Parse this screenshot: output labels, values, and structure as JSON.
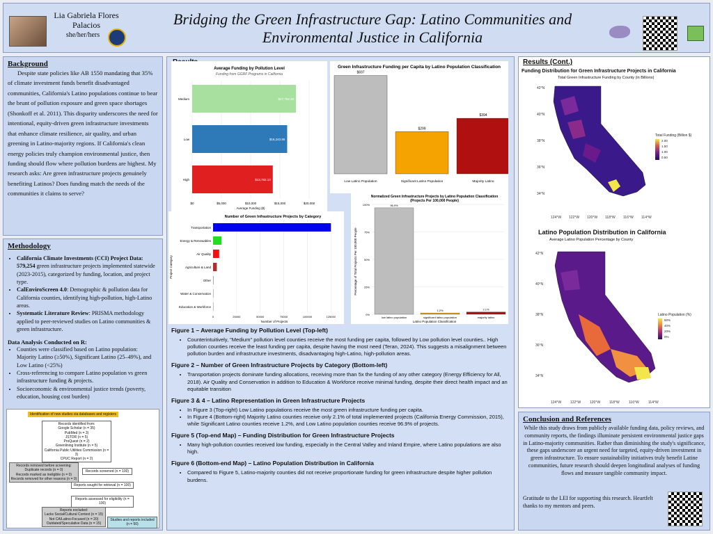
{
  "header": {
    "author": "Lia Gabriela Flores Palacios",
    "pronouns": "she/her/hers",
    "title": "Bridging the Green Infrastructure Gap: Latino Communities and Environmental Justice in California"
  },
  "background": {
    "heading": "Background",
    "body": "Despite state policies like AB 1550 mandating that 35% of climate investment funds benefit disadvantaged communities, California's Latino populations continue to bear the brunt of pollution exposure and green space shortages (Shonkoff et al. 2011). This disparity underscores the need for intentional, equity-driven green infrastructure investments that enhance climate resilience, air quality, and urban greening in Latino-majority regions. If California's clean energy policies truly champion environmental justice, then funding should flow where pollution burdens are highest. My research asks: Are green infrastructure projects genuinely benefiting Latinos? Does funding match the needs of the communities it claims to serve?"
  },
  "methodology": {
    "heading": "Methodology",
    "items": [
      {
        "bold": "California Climate Investments (CCI) Project Data: 579,254",
        "rest": " green infrastructure projects implemented statewide (2023-2015), categorized by funding, location, and project type."
      },
      {
        "bold": "CalEnviroScreen 4.0",
        "rest": ": Demographic & pollution data for California counties, identifying high-pollution, high-Latino areas."
      },
      {
        "bold": "Systematic Literature Review",
        "rest": ": PRISMA methodology applied to peer-reviewed studies on Latino communities & green infrastructure."
      }
    ],
    "analysis_heading": "Data Analysis Conducted on R:",
    "analysis_items": [
      "Counties were classified based on Latino population: Majority Latino (≥50%), Significant Latino (25–49%), and Low Latino (<25%)",
      "Cross-referencing to compare Latino population vs green infrastructure funding & projects.",
      "Socioeconomic & environmental justice trends (poverty, education, housing cost burden)"
    ]
  },
  "prisma": {
    "identification": "Identification of new studies via databases and registers",
    "records_identified": [
      "Records identified from:",
      "Google Scholar (n = 35)",
      "PubMed (n = 3)",
      "JSTOR (n = 5)",
      "ProQuest (n = 2)",
      "Greenlining Institute (n = 5)",
      "California Public Utilities Commission (n = 3)",
      "CPUC Report (n = 2)"
    ],
    "removed": [
      "Records removed before screening:",
      "Duplicate records (n = 0)",
      "Records marked as ineligible (n = 0)",
      "Records removed for other reasons (n = 0)"
    ],
    "screened": "Records screened (n = 100)",
    "sought": "Reports sought for retrieval (n = 100)",
    "assessed": "Reports assessed for eligibility (n = 100)",
    "excluded": [
      "Reports excluded:",
      "Lacks Social/Cultural Context (n = 15)",
      "Not CA/Latino-Focused (n = 20)",
      "Outdated/Speculative Data (n = 15)"
    ],
    "included": "Studies and reports included (n = 50)"
  },
  "results": {
    "heading": "Results",
    "figures": [
      {
        "title": "Figure 1 – Average Funding by Pollution Level (Top-left)",
        "bullets": [
          "Counterintuitively, \"Medium\" pollution level counties receive the most funding per capita, followed by Low pollution level counties.. High pollution counties receive the least funding per capita, despite having the most need (Teran, 2024). This suggests a misalignment between pollution burden and infrastructure investments, disadvantaging high-Latino, high-pollution areas."
        ]
      },
      {
        "title": "Figure 2 – Number of Green Infrastructure Projects by Category (Bottom-left)",
        "bullets": [
          "Transportation projects dominate funding allocations, receiving more than 5x the funding of any other category (Energy Efficiency for All, 2018). Air Quality and Conservation in addition to Education & Workforce receive minimal funding, despite their direct health impact and an equitable transition"
        ]
      },
      {
        "title": "Figure 3 & 4 – Latino Representation in Green Infrastructure Projects",
        "bullets": [
          "In Figure 3 (Top-right) Low Latino populations receive the most green infrastructure funding per capita.",
          "In Figure 4 (Bottom-right) Majority Latino counties receive only 2.1% of total implemented projects (California Energy Commission, 2015), while Significant Latino counties receive 1.2%, and Low Latino population counties receive 96.9% of projects."
        ]
      },
      {
        "title": "Figure 5 (Top-end Map) – Funding Distribution for Green Infrastructure Projects",
        "bullets": [
          "Many high-pollution counties received low funding, especially in the Central Valley and Inland Empire, where Latino populations are also high."
        ]
      },
      {
        "title": "Figure 6 (Bottom-end Map) – Latino Population Distribution in California",
        "bullets": [
          "Compared to Figure 5, Latino-majority counties did not receive proportionate funding for green infrastructure despite higher pollution burdens."
        ]
      }
    ]
  },
  "results_cont": {
    "heading": "Results (Cont.)",
    "map1_title": "Funding Distribution for Green Infrastructure Projects in California",
    "map1_subtitle": "Total Green Infrastructure Funding by County (in Billions)",
    "map1_legend_title": "Total Funding (Billion $)",
    "map1_legend": [
      "2.00",
      "1.50",
      "1.00",
      "0.50"
    ],
    "map2_title": "Latino Population Distribution in California",
    "map2_subtitle": "Average Latino Population Percentage by County",
    "map2_legend_title": "Latino Population (%)",
    "map2_legend": [
      "60%",
      "40%",
      "20%",
      "0%"
    ],
    "lat_labels_1": [
      "42°N",
      "40°N",
      "38°N",
      "36°N",
      "34°N"
    ],
    "lon_labels_1": [
      "124°W",
      "122°W",
      "120°W",
      "118°W",
      "116°W",
      "114°W"
    ],
    "lat_labels_2": [
      "42°N",
      "40°N",
      "38°N",
      "36°N",
      "34°N"
    ],
    "lon_labels_2": [
      "124°W",
      "122°W",
      "120°W",
      "118°W",
      "116°W",
      "114°W"
    ]
  },
  "conclusion": {
    "heading": "Conclusion and References",
    "body": "While this study draws from publicly available funding data, policy reviews, and community reports, the findings illuminate persistent environmental justice gaps in Latino-majority communities. Rather than diminishing the study's significance, these gaps underscore an urgent need for targeted, equity-driven investment in green infrastructure. To ensure sustainability initiatives truly benefit Latine communities, future research should deepen longitudinal analyses of funding flows and measure tangible community impact.",
    "thanks": "Gratitude to the LEI for supporting this research. Heartfelt thanks to my mentors and peers."
  },
  "chart_data": [
    {
      "type": "bar",
      "title": "Average Funding by Pollution Level",
      "subtitle": "Funding from GGRF Programs in California",
      "categories": [
        "Medium",
        "Low",
        "High"
      ],
      "values": [
        17752.32,
        16243.86,
        13782.13
      ],
      "value_labels": [
        "$17,752.32",
        "$16,243.86",
        "$13,782.13"
      ],
      "colors": [
        "#a8e0a0",
        "#2e7ab8",
        "#e02020"
      ],
      "xlabel": "Average Funding ($)",
      "xticks": [
        "$0",
        "$5,000",
        "$10,000",
        "$15,000",
        "$20,000"
      ],
      "xlim": [
        0,
        20000
      ]
    },
    {
      "type": "bar",
      "title": "Green Infrastructure Funding per Capita by Latino Population Classification",
      "categories": [
        "Low Latino Population",
        "Significant Latino Population",
        "Majority Latino"
      ],
      "values": [
        697,
        299,
        394
      ],
      "value_labels": [
        "$697",
        "$299",
        "$394"
      ],
      "colors": [
        "#bdbdbd",
        "#f5a300",
        "#b01010"
      ],
      "ylim": [
        0,
        700
      ]
    },
    {
      "type": "bar",
      "title": "Number of Green Infrastructure Projects by Category",
      "categories": [
        "Transportation",
        "Energy & Renewables",
        "Air Quality",
        "Agriculture & Land",
        "Other",
        "Water & Conservation",
        "Education & Workforce"
      ],
      "values": [
        125000,
        9000,
        6500,
        4000,
        500,
        300,
        200
      ],
      "colors": [
        "#0000ee",
        "#22dd22",
        "#ee1111",
        "#b03030",
        "#888888",
        "#888888",
        "#888888"
      ],
      "xlabel": "Number of Projects",
      "ylabel": "Project Category",
      "xticks": [
        "0",
        "25000",
        "50000",
        "75000",
        "100000",
        "125000"
      ],
      "xlim": [
        0,
        130000
      ]
    },
    {
      "type": "bar",
      "title": "Normalized Green Infrastructure Projects by Latino Population Classification",
      "subtitle": "(Projects Per 100,000 People)",
      "categories": [
        "low latino population",
        "significant latino population",
        "majority latino"
      ],
      "values": [
        96.9,
        1.2,
        2.1
      ],
      "value_labels": [
        "96.9%",
        "1.2%",
        "2.1%"
      ],
      "colors": [
        "#bdbdbd",
        "#f5a300",
        "#b01010"
      ],
      "xlabel": "Latino Population Classification",
      "ylabel": "Percentage of Total Projects Per 100,000 People",
      "yticks": [
        "0%",
        "25%",
        "50%",
        "75%",
        "100%"
      ],
      "ylim": [
        0,
        100
      ]
    }
  ]
}
